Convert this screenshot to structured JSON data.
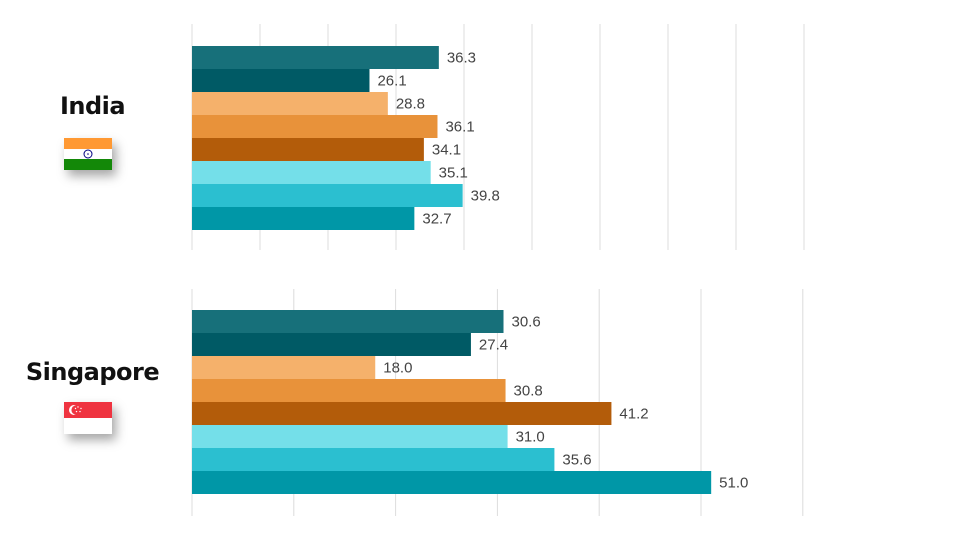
{
  "chart_data": [
    {
      "type": "bar",
      "orientation": "horizontal",
      "title": "India",
      "flag_icon": "india-flag-icon",
      "xlim": [
        0,
        90
      ],
      "grid": true,
      "values": [
        36.3,
        26.1,
        28.8,
        36.1,
        34.1,
        35.1,
        39.8,
        32.7
      ],
      "labels": [
        "36.3",
        "26.1",
        "28.8",
        "36.1",
        "34.1",
        "35.1",
        "39.8",
        "32.7"
      ],
      "colors": [
        "#17707a",
        "#005a65",
        "#f5b16b",
        "#e8923a",
        "#b35c0a",
        "#74dfe9",
        "#2bbfd0",
        "#0097a7"
      ]
    },
    {
      "type": "bar",
      "orientation": "horizontal",
      "title": "Singapore",
      "flag_icon": "singapore-flag-icon",
      "xlim": [
        0,
        60
      ],
      "grid": true,
      "values": [
        30.6,
        27.4,
        18.0,
        30.8,
        41.2,
        31.0,
        35.6,
        51.0
      ],
      "labels": [
        "30.6",
        "27.4",
        "18.0",
        "30.8",
        "41.2",
        "31.0",
        "35.6",
        "51.0"
      ],
      "colors": [
        "#17707a",
        "#005a65",
        "#f5b16b",
        "#e8923a",
        "#b35c0a",
        "#74dfe9",
        "#2bbfd0",
        "#0097a7"
      ]
    }
  ]
}
